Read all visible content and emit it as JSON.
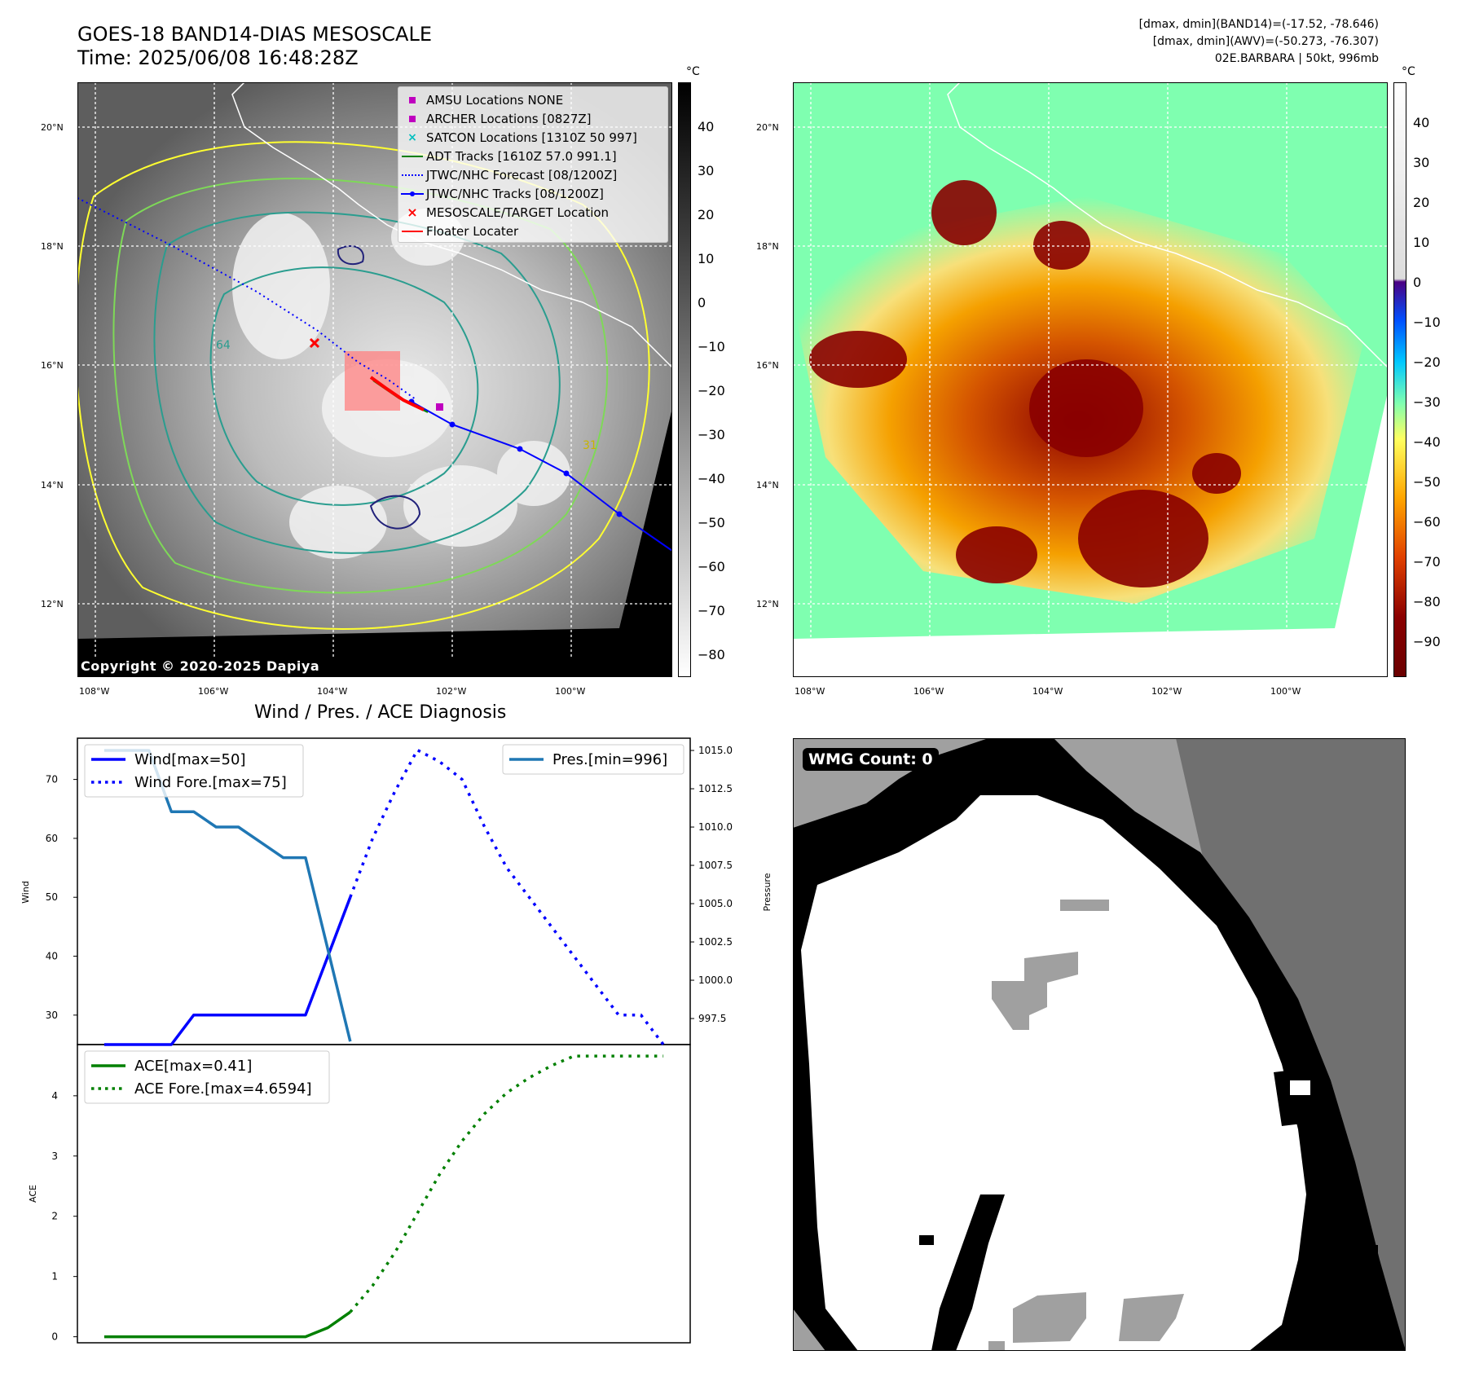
{
  "header": {
    "title_line1": "GOES-18 BAND14-DIAS MESOSCALE",
    "title_line2": "Time: 2025/06/08 16:48:28Z",
    "info_line1": "[dmax, dmin](BAND14)=(-17.52, -78.646)",
    "info_line2": "[dmax, dmin](AWV)=(-50.273, -76.307)",
    "info_line3": "02E.BARBARA | 50kt, 996mb"
  },
  "map": {
    "lat_labels": [
      "20°N",
      "18°N",
      "16°N",
      "14°N",
      "12°N"
    ],
    "lon_labels": [
      "108°W",
      "106°W",
      "104°W",
      "102°W",
      "100°W"
    ],
    "copyright": "Copyright © 2020-2025 Dapiya",
    "contour_labels": [
      "64",
      "31"
    ],
    "legend": [
      {
        "label": "AMSU Locations NONE",
        "color": "#bf00bf",
        "icon": "square-marker"
      },
      {
        "label": "ARCHER Locations [0827Z]",
        "color": "#bf00bf",
        "icon": "square-marker"
      },
      {
        "label": "SATCON Locations [1310Z 50 997]",
        "color": "#00bfbf",
        "icon": "x-marker"
      },
      {
        "label": "ADT Tracks [1610Z 57.0 991.1]",
        "color": "#008000",
        "icon": "solid-line"
      },
      {
        "label": "JTWC/NHC Forecast [08/1200Z]",
        "color": "#0000ff",
        "icon": "dotted-line"
      },
      {
        "label": "JTWC/NHC Tracks [08/1200Z]",
        "color": "#0000ff",
        "icon": "line-dot"
      },
      {
        "label": "MESOSCALE/TARGET Location",
        "color": "#ff0000",
        "icon": "x-marker"
      },
      {
        "label": "Floater Locater",
        "color": "#ff0000",
        "icon": "solid-line"
      }
    ]
  },
  "colorbar_gray": {
    "unit": "°C",
    "ticks": [
      "40",
      "30",
      "20",
      "10",
      "0",
      "−10",
      "−20",
      "−30",
      "−40",
      "−50",
      "−60",
      "−70",
      "−80"
    ]
  },
  "colorbar_color": {
    "unit": "°C",
    "ticks": [
      "40",
      "30",
      "20",
      "10",
      "0",
      "−10",
      "−20",
      "−30",
      "−40",
      "−50",
      "−60",
      "−70",
      "−80",
      "−90"
    ]
  },
  "diagnosis": {
    "title": "Wind / Pres. / ACE Diagnosis",
    "wind_ylabel": "Wind",
    "pres_ylabel": "Pressure",
    "ace_ylabel": "ACE",
    "wind_ticks": [
      "70",
      "60",
      "50",
      "40",
      "30"
    ],
    "pres_ticks": [
      "1015.0",
      "1012.5",
      "1010.0",
      "1007.5",
      "1005.0",
      "1002.5",
      "1000.0",
      "997.5"
    ],
    "ace_ticks": [
      "4",
      "3",
      "2",
      "1",
      "0"
    ],
    "legend_wind": "Wind[max=50]",
    "legend_wind_fore": "Wind Fore.[max=75]",
    "legend_pres": "Pres.[min=996]",
    "legend_ace": "ACE[max=0.41]",
    "legend_ace_fore": "ACE Fore.[max=4.6594]"
  },
  "wmg": {
    "label": "WMG Count: 0"
  },
  "chart_data": [
    {
      "type": "line",
      "title": "Wind / Pres. / ACE Diagnosis",
      "ylabel": "Wind",
      "ylim": [
        25,
        77
      ],
      "series": [
        {
          "name": "Wind[max=50]",
          "x": [
            0,
            1,
            2,
            3,
            4,
            5,
            6,
            7,
            8,
            9,
            10,
            11
          ],
          "values": [
            25,
            25,
            25,
            25,
            30,
            30,
            30,
            30,
            30,
            30,
            40,
            50
          ],
          "color": "#0000ff",
          "style": "solid"
        },
        {
          "name": "Wind Fore.[max=75]",
          "x": [
            11,
            12,
            13,
            14,
            15,
            16,
            17,
            18,
            19,
            20,
            21,
            22,
            23,
            24,
            25
          ],
          "values": [
            50,
            60,
            68,
            75,
            73,
            70,
            62,
            55,
            50,
            45,
            40,
            35,
            30,
            30,
            25
          ],
          "color": "#0000ff",
          "style": "dotted"
        }
      ]
    },
    {
      "type": "line",
      "ylabel": "Pressure",
      "ylim": [
        995.8,
        1015.8
      ],
      "series": [
        {
          "name": "Pres.[min=996]",
          "x": [
            0,
            1,
            2,
            3,
            4,
            5,
            6,
            7,
            8,
            9,
            10,
            11
          ],
          "values": [
            1015,
            1015,
            1015,
            1011,
            1011,
            1010,
            1010,
            1009,
            1008,
            1008,
            1002,
            996
          ],
          "color": "#1f77b4",
          "style": "solid"
        }
      ]
    },
    {
      "type": "line",
      "ylabel": "ACE",
      "ylim": [
        -0.1,
        4.85
      ],
      "series": [
        {
          "name": "ACE[max=0.41]",
          "x": [
            0,
            1,
            2,
            3,
            4,
            5,
            6,
            7,
            8,
            9,
            10,
            11
          ],
          "values": [
            0,
            0,
            0,
            0,
            0,
            0,
            0,
            0,
            0,
            0,
            0.15,
            0.41
          ],
          "color": "#008000",
          "style": "solid"
        },
        {
          "name": "ACE Fore.[max=4.6594]",
          "x": [
            11,
            12,
            13,
            14,
            15,
            16,
            17,
            18,
            19,
            20,
            21,
            22,
            23,
            24,
            25
          ],
          "values": [
            0.41,
            0.85,
            1.4,
            2.05,
            2.7,
            3.25,
            3.7,
            4.05,
            4.3,
            4.5,
            4.6594,
            4.6594,
            4.6594,
            4.6594,
            4.6594
          ],
          "color": "#008000",
          "style": "dotted"
        }
      ]
    }
  ]
}
